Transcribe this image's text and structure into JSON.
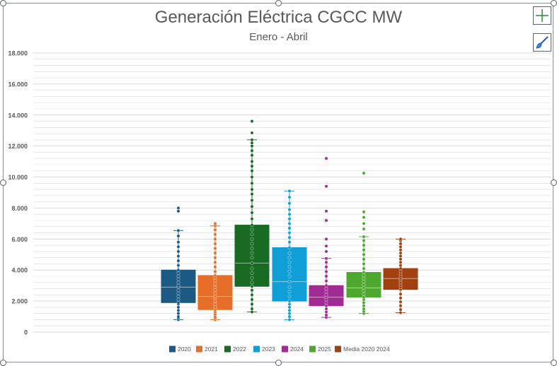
{
  "chart_data": {
    "type": "box",
    "title": "Generación Eléctrica CGCC MW",
    "subtitle": "Enero - Abril",
    "xlabel": "",
    "ylabel": "",
    "ylim": [
      0,
      18000
    ],
    "yticks": [
      0,
      2000,
      4000,
      6000,
      8000,
      10000,
      12000,
      14000,
      16000,
      18000
    ],
    "ytick_labels": [
      "0",
      "2.000",
      "4.000",
      "6.000",
      "8.000",
      "10.000",
      "12.000",
      "14.000",
      "16.000",
      "18.000"
    ],
    "grid": true,
    "legend_position": "bottom",
    "series": [
      {
        "name": "2020",
        "color": "#1c5a84",
        "min": 800,
        "q1": 1900,
        "median": 2900,
        "q3": 4000,
        "max": 6550,
        "points": [
          800,
          900,
          1000,
          1200,
          1400,
          1600,
          1800,
          1900,
          2100,
          2300,
          2500,
          2700,
          2900,
          3000,
          3200,
          3400,
          3600,
          3800,
          4000,
          4300,
          4600,
          4900,
          5200,
          5500,
          5800,
          6200,
          6550,
          7800,
          8000
        ]
      },
      {
        "name": "2021",
        "color": "#e66e28",
        "min": 800,
        "q1": 1450,
        "median": 2300,
        "q3": 3650,
        "max": 6850,
        "points": [
          800,
          900,
          1000,
          1150,
          1300,
          1450,
          1600,
          1800,
          2000,
          2200,
          2300,
          2500,
          2700,
          2900,
          3100,
          3300,
          3500,
          3650,
          3900,
          4200,
          4500,
          4800,
          5100,
          5400,
          5700,
          6000,
          6300,
          6600,
          6850,
          7000
        ]
      },
      {
        "name": "2022",
        "color": "#196b24",
        "min": 1300,
        "q1": 2950,
        "median": 4450,
        "q3": 6900,
        "max": 12400,
        "points": [
          1300,
          1500,
          1800,
          2100,
          2400,
          2700,
          2950,
          3200,
          3500,
          3800,
          4100,
          4450,
          4800,
          5100,
          5400,
          5700,
          6000,
          6300,
          6600,
          6900,
          7300,
          7700,
          8100,
          8500,
          8900,
          9200,
          9600,
          10000,
          10400,
          10700,
          11000,
          11400,
          11700,
          12000,
          12200,
          12400,
          12850,
          13600
        ]
      },
      {
        "name": "2023",
        "color": "#0f9ed5",
        "min": 800,
        "q1": 2000,
        "median": 3250,
        "q3": 5450,
        "max": 9100,
        "points": [
          800,
          1000,
          1200,
          1400,
          1600,
          1800,
          2000,
          2300,
          2600,
          2900,
          3250,
          3600,
          3900,
          4200,
          4500,
          4800,
          5100,
          5450,
          5800,
          6100,
          6400,
          6700,
          7000,
          7300,
          7600,
          7900,
          8300,
          8700,
          9100
        ]
      },
      {
        "name": "2024",
        "color": "#a02b93",
        "min": 950,
        "q1": 1700,
        "median": 2250,
        "q3": 3000,
        "max": 4750,
        "points": [
          950,
          1100,
          1300,
          1500,
          1700,
          1900,
          2100,
          2250,
          2400,
          2600,
          2800,
          3000,
          3300,
          3600,
          3900,
          4200,
          4500,
          4750,
          5200,
          5550,
          6000,
          7200,
          7800,
          9400,
          11200
        ]
      },
      {
        "name": "2025",
        "color": "#4ea72e",
        "min": 1200,
        "q1": 2250,
        "median": 2850,
        "q3": 3850,
        "max": 6150,
        "points": [
          1200,
          1350,
          1500,
          1700,
          1900,
          2100,
          2250,
          2450,
          2650,
          2850,
          3050,
          3250,
          3450,
          3650,
          3850,
          4100,
          4400,
          4700,
          5000,
          5300,
          5600,
          5900,
          6150,
          6650,
          7000,
          7400,
          7750,
          10250
        ]
      },
      {
        "name": "Media 2020 2024",
        "color": "#a1410f",
        "min": 1250,
        "q1": 2750,
        "median": 3450,
        "q3": 4100,
        "max": 6000,
        "points": [
          1250,
          1450,
          1700,
          1950,
          2200,
          2450,
          2750,
          2900,
          3050,
          3200,
          3350,
          3450,
          3600,
          3750,
          3900,
          4100,
          4300,
          4500,
          4700,
          4900,
          5100,
          5300,
          5500,
          5700,
          5900,
          6000
        ]
      }
    ]
  },
  "icons": {
    "chart_elements": "plus-icon",
    "chart_styles": "paintbrush-icon"
  },
  "colors": {
    "grid": "#d9d9d9",
    "text": "#595959",
    "frame": "#8a8f98"
  }
}
